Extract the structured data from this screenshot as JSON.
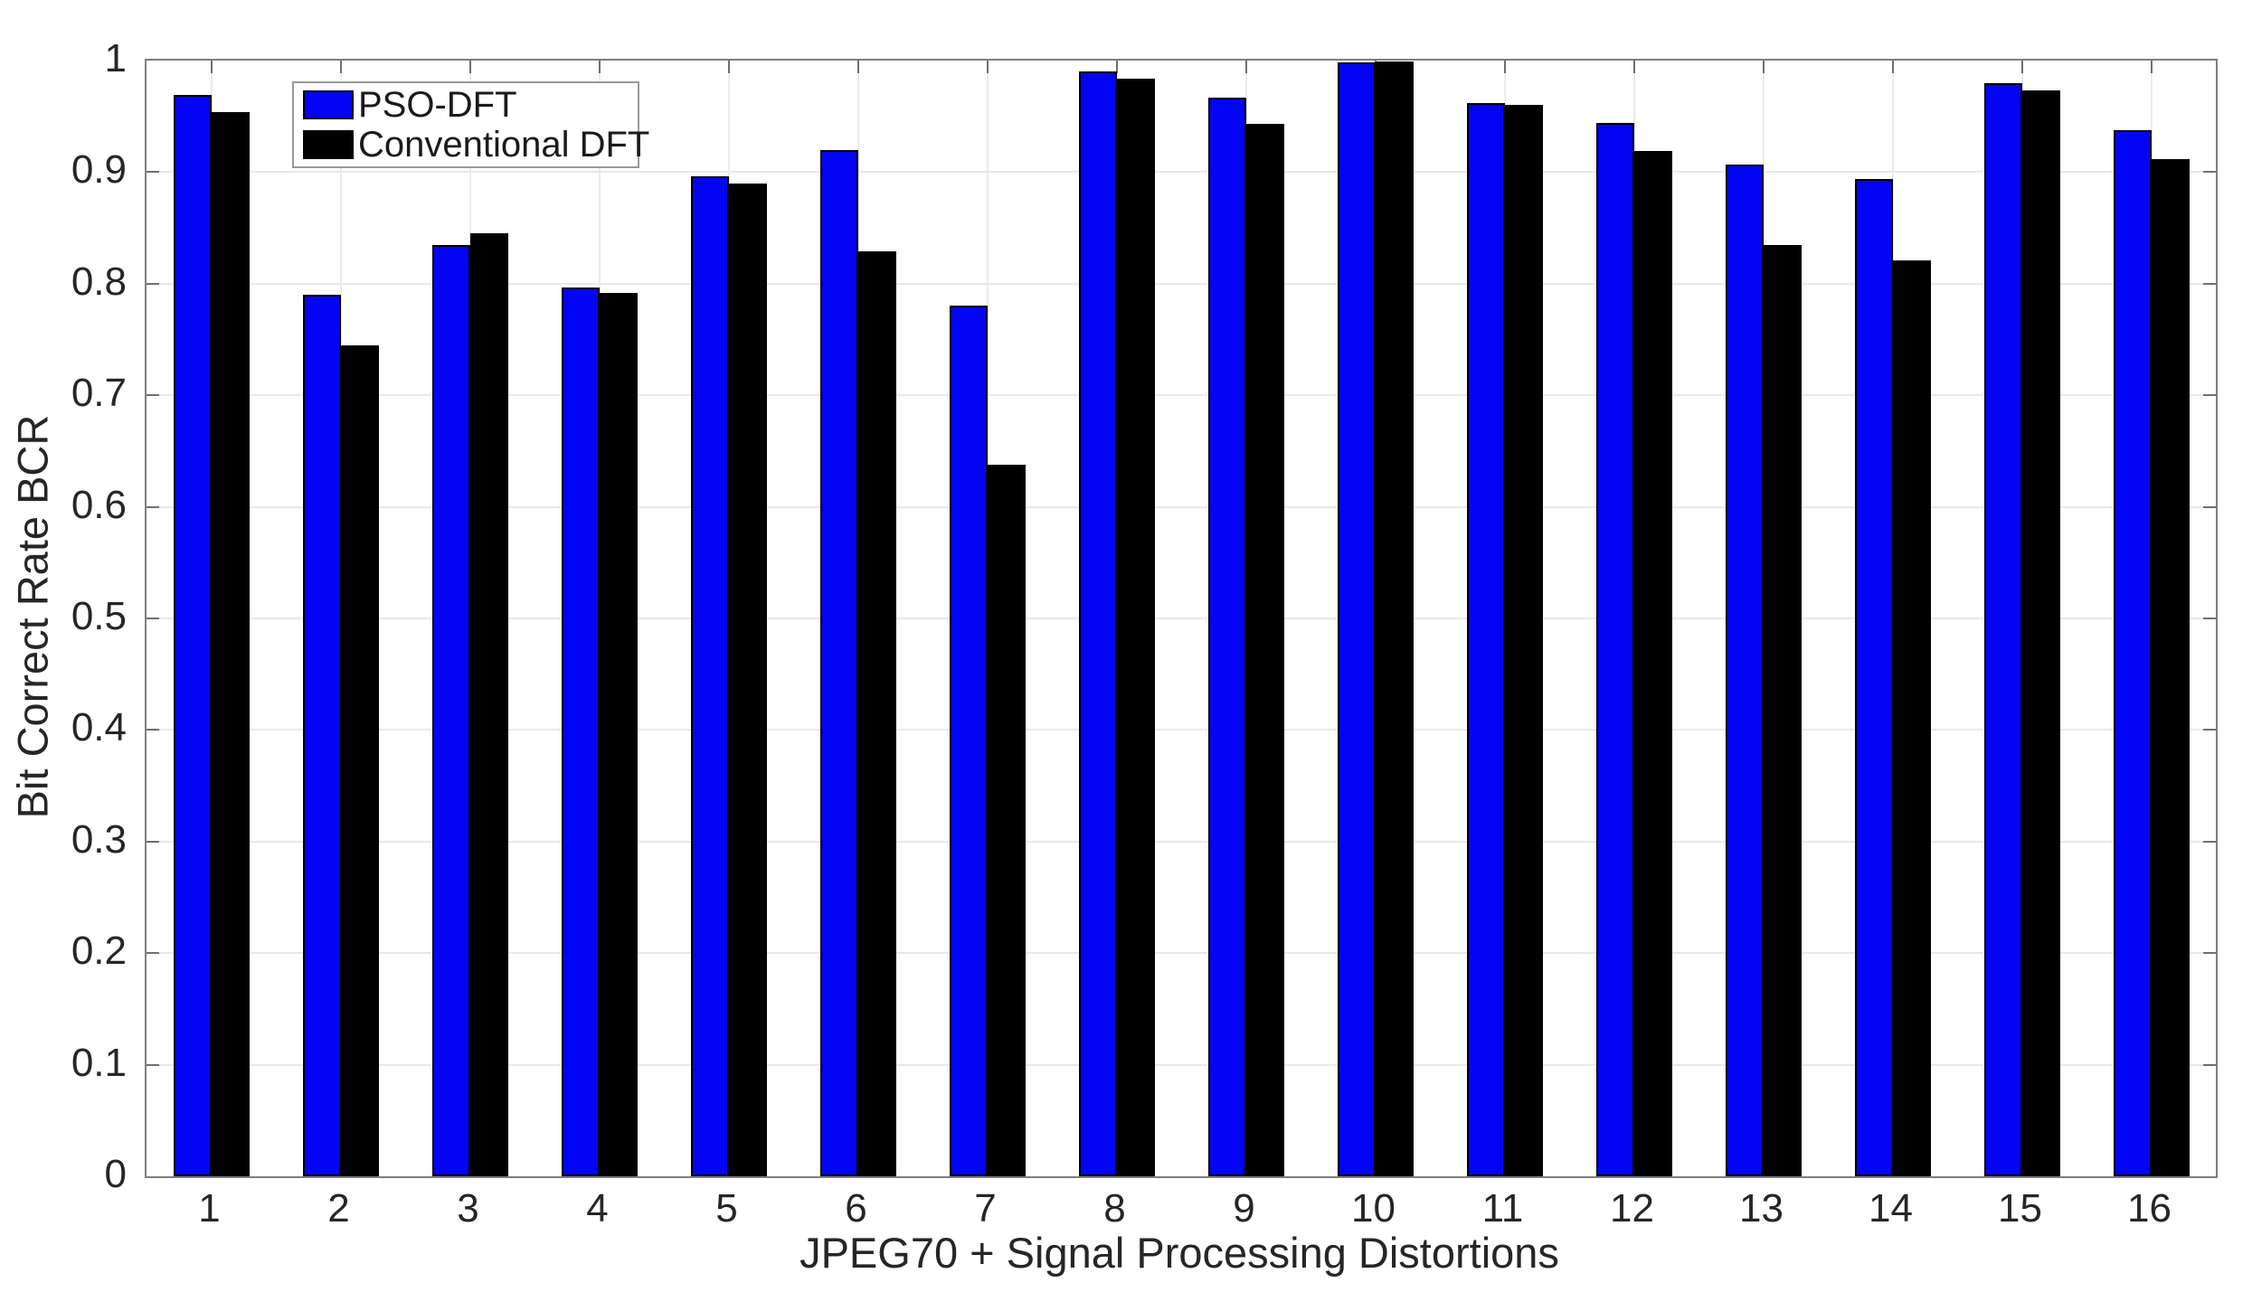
{
  "chart_data": {
    "type": "bar",
    "title": "",
    "xlabel": "JPEG70 + Signal Processing Distortions",
    "ylabel": "Bit Correct Rate BCR",
    "categories": [
      "1",
      "2",
      "3",
      "4",
      "5",
      "6",
      "7",
      "8",
      "9",
      "10",
      "11",
      "12",
      "13",
      "14",
      "15",
      "16"
    ],
    "series": [
      {
        "name": "PSO-DFT",
        "color": "#0404f5",
        "edge_color": "#000000",
        "values": [
          0.969,
          0.79,
          0.835,
          0.797,
          0.896,
          0.92,
          0.78,
          0.99,
          0.967,
          0.998,
          0.962,
          0.944,
          0.907,
          0.894,
          0.98,
          0.938
        ]
      },
      {
        "name": "Conventional DFT",
        "color": "#000000",
        "edge_color": "#000000",
        "values": [
          0.954,
          0.745,
          0.845,
          0.792,
          0.89,
          0.829,
          0.638,
          0.984,
          0.943,
          0.999,
          0.96,
          0.919,
          0.835,
          0.821,
          0.973,
          0.912
        ]
      }
    ],
    "ylim": [
      0,
      1
    ],
    "yticks": [
      0,
      0.1,
      0.2,
      0.3,
      0.4,
      0.5,
      0.6,
      0.7,
      0.8,
      0.9,
      1
    ],
    "ytick_labels": [
      "0",
      "0.1",
      "0.2",
      "0.3",
      "0.4",
      "0.5",
      "0.6",
      "0.7",
      "0.8",
      "0.9",
      "1"
    ],
    "grid": true,
    "legend": {
      "position": "top-left",
      "entries": [
        "PSO-DFT",
        "Conventional DFT"
      ]
    },
    "style": {
      "background": "#ffffff",
      "gridline_color": "#e8e8e8",
      "axis_box_color": "#7f7f7f",
      "tick_label_color": "#262626",
      "legend_border_color": "#9a9a9a"
    }
  }
}
